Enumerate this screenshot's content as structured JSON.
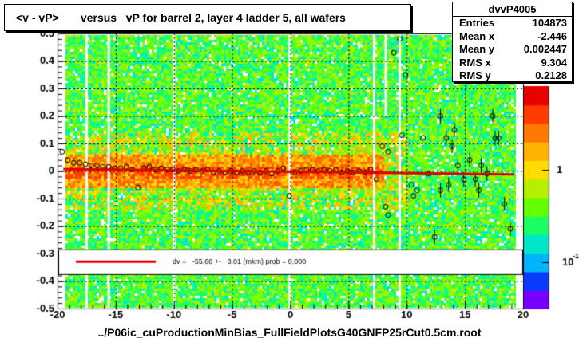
{
  "title": "<v - vP>       versus   vP for barrel 2, layer 4 ladder 5, all wafers",
  "stats": {
    "name": "dvvP4005",
    "rows": [
      {
        "label": "Entries",
        "value": "104873"
      },
      {
        "label": "Mean x",
        "value": "-2.446"
      },
      {
        "label": "Mean y",
        "value": "0.002447"
      },
      {
        "label": "RMS x",
        "value": "9.304"
      },
      {
        "label": "RMS y",
        "value": "0.2128"
      }
    ]
  },
  "footer": "../P06ic_cuProductionMinBias_FullFieldPlotsG40GNFP25rCut0.5cm.root",
  "legend": {
    "text": "dv =   -55.68 +-   3.01 (mkm) prob = 0.000"
  },
  "colorbar": {
    "labels": [
      "1",
      "10"
    ],
    "label_exponent": "-1"
  },
  "colors": {
    "fit_line": "#dd0000"
  },
  "chart_data": {
    "type": "heatmap",
    "title": "<v - vP>       versus   vP for barrel 2, layer 4 ladder 5, all wafers",
    "xlabel": "",
    "ylabel": "",
    "xlim": [
      -20,
      20
    ],
    "ylim": [
      -0.5,
      0.5
    ],
    "xticks": [
      -20,
      -15,
      -10,
      -5,
      0,
      5,
      10,
      15,
      20
    ],
    "yticks": [
      -0.5,
      -0.4,
      -0.3,
      -0.2,
      -0.1,
      0,
      0.1,
      0.2,
      0.3,
      0.4,
      0.5
    ],
    "grid": true,
    "fit": {
      "type": "line",
      "p0_mkm": -55.68,
      "err_mkm": 3.01,
      "prob": 0.0
    },
    "profile_points": [
      [
        -19.6,
        0.07
      ],
      [
        -19.1,
        0.04
      ],
      [
        -18.6,
        0.03
      ],
      [
        -18.1,
        0.03
      ],
      [
        -17.6,
        0.025
      ],
      [
        -17.1,
        0.02
      ],
      [
        -16.6,
        0.02
      ],
      [
        -16.1,
        0.015
      ],
      [
        -15.6,
        0.015
      ],
      [
        -15.1,
        0.01
      ],
      [
        -14.6,
        0.01
      ],
      [
        -14.1,
        0.015
      ],
      [
        -13.6,
        0.005
      ],
      [
        -13.1,
        -0.06
      ],
      [
        -12.6,
        0.01
      ],
      [
        -12.1,
        0.015
      ],
      [
        -11.6,
        0.005
      ],
      [
        -11.1,
        0.01
      ],
      [
        -10.6,
        0.005
      ],
      [
        -10.1,
        0.005
      ],
      [
        -9.6,
        0.0
      ],
      [
        -9.1,
        0.005
      ],
      [
        -8.6,
        0.0
      ],
      [
        -8.1,
        0.005
      ],
      [
        -7.6,
        0.0
      ],
      [
        -7.1,
        0.005
      ],
      [
        -6.6,
        -0.005
      ],
      [
        -6.1,
        0.0
      ],
      [
        -5.6,
        -0.005
      ],
      [
        -5.1,
        0.0
      ],
      [
        -4.6,
        -0.005
      ],
      [
        -4.1,
        0.0
      ],
      [
        -3.6,
        -0.005
      ],
      [
        -3.1,
        0.0
      ],
      [
        -2.6,
        -0.005
      ],
      [
        -2.1,
        0.0
      ],
      [
        -1.6,
        -0.01
      ],
      [
        -1.1,
        0.0
      ],
      [
        -0.6,
        0.01
      ],
      [
        -0.1,
        -0.09
      ],
      [
        0.4,
        -0.005
      ],
      [
        0.9,
        0.0
      ],
      [
        1.4,
        0.005
      ],
      [
        1.9,
        0.005
      ],
      [
        2.4,
        0.0
      ],
      [
        2.9,
        0.005
      ],
      [
        3.4,
        0.0
      ],
      [
        3.9,
        0.005
      ],
      [
        4.4,
        -0.005
      ],
      [
        4.9,
        0.0
      ],
      [
        5.4,
        -0.005
      ],
      [
        5.9,
        0.0
      ],
      [
        6.4,
        -0.005
      ],
      [
        6.9,
        0.005
      ],
      [
        7.4,
        -0.03
      ],
      [
        7.9,
        0.09
      ],
      [
        8.4,
        0.07
      ],
      [
        8.9,
        0.43
      ],
      [
        9.4,
        0.48
      ],
      [
        9.9,
        0.35
      ],
      [
        10.4,
        -0.05
      ],
      [
        10.9,
        -0.07
      ],
      [
        11.4,
        0.12
      ],
      [
        11.9,
        -0.01
      ],
      [
        12.4,
        -0.24
      ],
      [
        12.9,
        0.2
      ],
      [
        13.4,
        0.12
      ],
      [
        13.9,
        0.09
      ],
      [
        14.4,
        0.02
      ],
      [
        14.9,
        -0.03
      ],
      [
        15.4,
        0.04
      ],
      [
        15.9,
        -0.03
      ],
      [
        16.4,
        0.02
      ],
      [
        16.9,
        -0.01
      ],
      [
        17.4,
        0.2
      ],
      [
        17.9,
        0.12
      ],
      [
        18.4,
        -0.12
      ],
      [
        18.9,
        -0.21
      ],
      [
        8.2,
        -0.13
      ],
      [
        8.4,
        -0.16
      ],
      [
        10.6,
        -0.09
      ],
      [
        12.9,
        -0.07
      ],
      [
        16.2,
        -0.07
      ],
      [
        13.6,
        -0.05
      ],
      [
        17.6,
        0.12
      ],
      [
        9.6,
        0.13
      ],
      [
        14.1,
        0.15
      ]
    ],
    "colorscale": [
      "#7800ff",
      "#0a3cff",
      "#00b4ff",
      "#00e6c8",
      "#19ff64",
      "#64ff00",
      "#b4f000",
      "#ffdc00",
      "#ffb400",
      "#ff7800",
      "#ff3c00",
      "#e60000"
    ]
  }
}
